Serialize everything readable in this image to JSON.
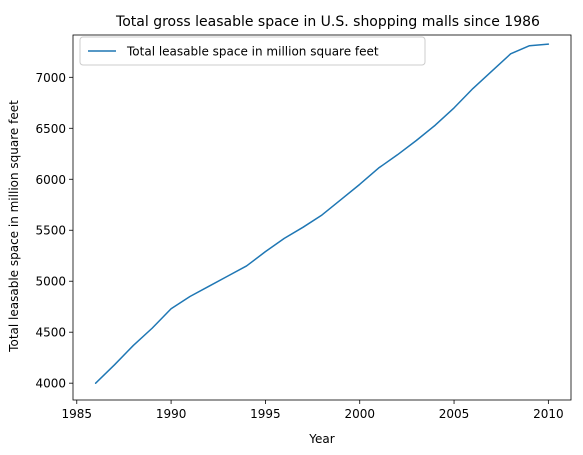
{
  "chart_data": {
    "type": "line",
    "title": "Total gross leasable space in U.S. shopping malls since 1986",
    "xlabel": "Year",
    "ylabel": "Total leasable space in million square feet",
    "xlim": [
      1984.8,
      2011.2
    ],
    "ylim": [
      3835,
      7415
    ],
    "xticks": [
      1985,
      1990,
      1995,
      2000,
      2005,
      2010
    ],
    "yticks": [
      4000,
      4500,
      5000,
      5500,
      6000,
      6500,
      7000
    ],
    "grid": false,
    "legend_position": "upper-left",
    "colors": {
      "series": "#1f77b4",
      "axis": "#000000",
      "background": "#ffffff"
    },
    "series": [
      {
        "name": "Total leasable space in million square feet",
        "x": [
          1986,
          1987,
          1988,
          1989,
          1990,
          1991,
          1992,
          1993,
          1994,
          1995,
          1996,
          1997,
          1998,
          1999,
          2000,
          2001,
          2002,
          2003,
          2004,
          2005,
          2006,
          2007,
          2008,
          2009,
          2010
        ],
        "y": [
          4000,
          4180,
          4370,
          4540,
          4730,
          4850,
          4950,
          5050,
          5150,
          5290,
          5420,
          5530,
          5650,
          5800,
          5950,
          6110,
          6240,
          6380,
          6530,
          6700,
          6890,
          7060,
          7230,
          7310,
          7325
        ]
      }
    ]
  }
}
